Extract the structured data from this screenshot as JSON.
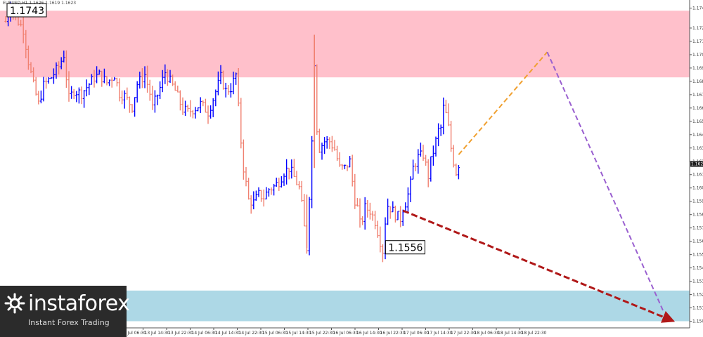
{
  "header": {
    "text": "EURUSD,H1  1.1626 1.1619 1.1623"
  },
  "logo": {
    "name": "instaforex",
    "tagline": "Instant Forex Trading"
  },
  "colors": {
    "resistance_zone": "#ffc0cb",
    "support_zone": "#add8e6",
    "bull_bars": "#0000ff",
    "bear_bars": "#f08070",
    "projection_up": "#f0a030",
    "projection_down_steep": "#9a60d0",
    "projection_down": "#b01818",
    "logo_bg": "#2b2b2b"
  },
  "chart_data": {
    "type": "bar",
    "title": "",
    "xlabel": "",
    "ylabel": "",
    "ylim": [
      1.15,
      1.1745
    ],
    "y_ticks": [
      "1.1740",
      "1.1725",
      "1.1715",
      "1.1705",
      "1.1695",
      "1.1685",
      "1.1675",
      "1.1665",
      "1.1655",
      "1.1645",
      "1.1635",
      "1.1625",
      "1.1615",
      "1.1605",
      "1.1595",
      "1.1585",
      "1.1575",
      "1.1565",
      "1.1555",
      "1.1545",
      "1.1535",
      "1.1525",
      "1.1515",
      "1.1505"
    ],
    "x_ticks": [
      "13 Jul 06:30",
      "13 Jul 14:30",
      "13 Jul 22:30",
      "14 Jul 06:30",
      "14 Jul 14:30",
      "14 Jul 22:30",
      "15 Jul 06:30",
      "15 Jul 14:30",
      "15 Jul 22:30",
      "16 Jul 06:30",
      "16 Jul 14:30",
      "16 Jul 22:30",
      "17 Jul 06:30",
      "17 Jul 14:30",
      "17 Jul 22:30",
      "18 Jul 06:30",
      "18 Jul 14:30",
      "18 Jul 22:30"
    ],
    "current_price": "1.1623",
    "zones": [
      {
        "name": "resistance",
        "low": 1.1688,
        "high": 1.1738
      },
      {
        "name": "support",
        "low": 1.1505,
        "high": 1.1528
      }
    ],
    "annotations": [
      {
        "label": "1.1743",
        "x_index": 1,
        "price": 1.1743
      },
      {
        "label": "1.1556",
        "x_index": 149,
        "price": 1.1556
      }
    ],
    "projections": [
      {
        "name": "orange",
        "from": [
          179,
          1.163
        ],
        "to": [
          214,
          1.1707
        ],
        "style": "dashed"
      },
      {
        "name": "purple",
        "from": [
          214,
          1.1707
        ],
        "to": [
          260,
          1.1512
        ],
        "style": "dashed"
      },
      {
        "name": "red",
        "from": [
          157,
          1.1588
        ],
        "to": [
          264,
          1.1505
        ],
        "style": "dashed-arrow"
      }
    ],
    "price_path": [
      [
        0,
        1.173
      ],
      [
        2,
        1.1742
      ],
      [
        4,
        1.1733
      ],
      [
        7,
        1.1724
      ],
      [
        9,
        1.17
      ],
      [
        11,
        1.1682
      ],
      [
        13,
        1.1668
      ],
      [
        15,
        1.1682
      ],
      [
        18,
        1.1688
      ],
      [
        21,
        1.1696
      ],
      [
        23,
        1.1705
      ],
      [
        24,
        1.1688
      ],
      [
        25,
        1.1672
      ],
      [
        27,
        1.1678
      ],
      [
        30,
        1.1676
      ],
      [
        33,
        1.1683
      ],
      [
        35,
        1.1688
      ],
      [
        37,
        1.169
      ],
      [
        40,
        1.1684
      ],
      [
        43,
        1.169
      ],
      [
        45,
        1.1676
      ],
      [
        47,
        1.1674
      ],
      [
        50,
        1.1666
      ],
      [
        52,
        1.1683
      ],
      [
        55,
        1.169
      ],
      [
        57,
        1.1676
      ],
      [
        58,
        1.1665
      ],
      [
        61,
        1.168
      ],
      [
        63,
        1.1692
      ],
      [
        65,
        1.1685
      ],
      [
        67,
        1.1678
      ],
      [
        70,
        1.1664
      ],
      [
        72,
        1.1662
      ],
      [
        75,
        1.1665
      ],
      [
        77,
        1.1668
      ],
      [
        80,
        1.1662
      ],
      [
        82,
        1.1672
      ],
      [
        85,
        1.1688
      ],
      [
        87,
        1.1678
      ],
      [
        89,
        1.168
      ],
      [
        91,
        1.169
      ],
      [
        92,
        1.1665
      ],
      [
        93,
        1.164
      ],
      [
        94,
        1.162
      ],
      [
        95,
        1.1608
      ],
      [
        96,
        1.1596
      ],
      [
        98,
        1.1594
      ],
      [
        100,
        1.16
      ],
      [
        102,
        1.1598
      ],
      [
        104,
        1.1604
      ],
      [
        106,
        1.1606
      ],
      [
        108,
        1.161
      ],
      [
        110,
        1.1617
      ],
      [
        112,
        1.162
      ],
      [
        114,
        1.1613
      ],
      [
        116,
        1.1605
      ],
      [
        117,
        1.1592
      ],
      [
        118,
        1.1575
      ],
      [
        119,
        1.156
      ],
      [
        121,
        1.164
      ],
      [
        122,
        1.17
      ],
      [
        123,
        1.165
      ],
      [
        124,
        1.1635
      ],
      [
        126,
        1.164
      ],
      [
        128,
        1.164
      ],
      [
        130,
        1.1634
      ],
      [
        132,
        1.162
      ],
      [
        134,
        1.162
      ],
      [
        136,
        1.1625
      ],
      [
        137,
        1.161
      ],
      [
        138,
        1.1596
      ],
      [
        139,
        1.159
      ],
      [
        140,
        1.1578
      ],
      [
        141,
        1.1582
      ],
      [
        142,
        1.159
      ],
      [
        144,
        1.1588
      ],
      [
        146,
        1.158
      ],
      [
        148,
        1.1565
      ],
      [
        149,
        1.1558
      ],
      [
        150,
        1.158
      ],
      [
        151,
        1.1592
      ],
      [
        152,
        1.159
      ],
      [
        154,
        1.1585
      ],
      [
        156,
        1.1582
      ],
      [
        157,
        1.159
      ],
      [
        158,
        1.1594
      ],
      [
        159,
        1.16
      ],
      [
        160,
        1.1608
      ],
      [
        161,
        1.162
      ],
      [
        163,
        1.1628
      ],
      [
        165,
        1.163
      ],
      [
        166,
        1.1622
      ],
      [
        167,
        1.1614
      ],
      [
        168,
        1.1625
      ],
      [
        170,
        1.164
      ],
      [
        171,
        1.1648
      ],
      [
        172,
        1.165
      ],
      [
        173,
        1.1665
      ],
      [
        174,
        1.166
      ],
      [
        175,
        1.165
      ],
      [
        176,
        1.1635
      ],
      [
        177,
        1.1625
      ],
      [
        178,
        1.1617
      ],
      [
        179,
        1.1623
      ]
    ]
  }
}
